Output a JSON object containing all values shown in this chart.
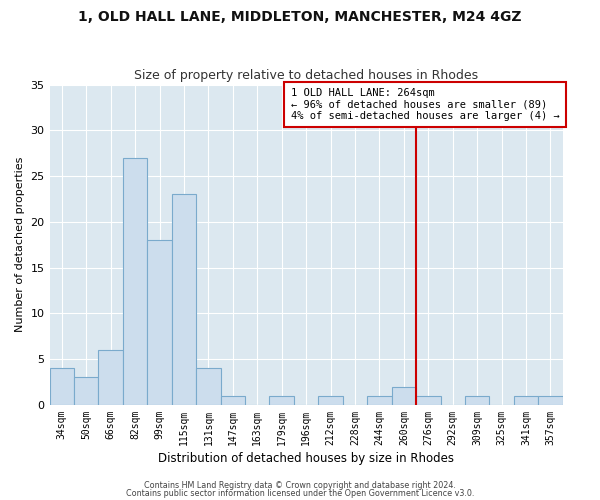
{
  "title1": "1, OLD HALL LANE, MIDDLETON, MANCHESTER, M24 4GZ",
  "title2": "Size of property relative to detached houses in Rhodes",
  "xlabel": "Distribution of detached houses by size in Rhodes",
  "ylabel": "Number of detached properties",
  "bin_labels": [
    "34sqm",
    "50sqm",
    "66sqm",
    "82sqm",
    "99sqm",
    "115sqm",
    "131sqm",
    "147sqm",
    "163sqm",
    "179sqm",
    "196sqm",
    "212sqm",
    "228sqm",
    "244sqm",
    "260sqm",
    "276sqm",
    "292sqm",
    "309sqm",
    "325sqm",
    "341sqm",
    "357sqm"
  ],
  "bar_heights": [
    4,
    3,
    6,
    27,
    18,
    23,
    4,
    1,
    0,
    1,
    0,
    1,
    0,
    1,
    2,
    1,
    0,
    1,
    0,
    1,
    1
  ],
  "bar_color": "#ccdded",
  "bar_edge_color": "#7aaacc",
  "ylim": [
    0,
    35
  ],
  "yticks": [
    0,
    5,
    10,
    15,
    20,
    25,
    30,
    35
  ],
  "vline_color": "#cc0000",
  "annotation_title": "1 OLD HALL LANE: 264sqm",
  "annotation_line1": "← 96% of detached houses are smaller (89)",
  "annotation_line2": "4% of semi-detached houses are larger (4) →",
  "annotation_box_color": "#cc0000",
  "footer1": "Contains HM Land Registry data © Crown copyright and database right 2024.",
  "footer2": "Contains public sector information licensed under the Open Government Licence v3.0.",
  "fig_bg_color": "#ffffff",
  "axes_bg_color": "#dce8f0",
  "grid_color": "#ffffff",
  "title1_fontsize": 10,
  "title2_fontsize": 9
}
